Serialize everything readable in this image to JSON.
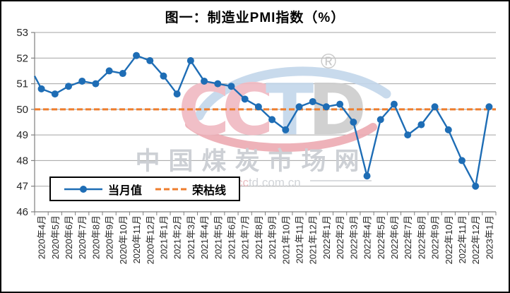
{
  "chart_data": {
    "type": "line",
    "title": "图一：制造业PMI指数（%）",
    "categories": [
      "2020年4月",
      "2020年5月",
      "2020年6月",
      "2020年7月",
      "2020年8月",
      "2020年9月",
      "2020年10月",
      "2020年11月",
      "2020年12月",
      "2021年1月",
      "2021年2月",
      "2021年3月",
      "2021年4月",
      "2021年5月",
      "2021年6月",
      "2021年7月",
      "2021年8月",
      "2021年9月",
      "2021年10月",
      "2021年11月",
      "2021年12月",
      "2022年1月",
      "2022年2月",
      "2022年3月",
      "2022年4月",
      "2022年5月",
      "2022年6月",
      "2022年7月",
      "2022年8月",
      "2022年9月",
      "2022年10月",
      "2022年11月",
      "2022年12月",
      "2023年1月"
    ],
    "series": [
      {
        "name": "当月值",
        "type": "line-with-markers",
        "values": [
          50.8,
          50.6,
          50.9,
          51.1,
          51.0,
          51.5,
          51.4,
          52.1,
          51.9,
          51.3,
          50.6,
          51.9,
          51.1,
          51.0,
          50.9,
          50.4,
          50.1,
          49.6,
          49.2,
          50.1,
          50.3,
          50.1,
          50.2,
          49.5,
          47.4,
          49.6,
          50.2,
          49.0,
          49.4,
          50.1,
          49.2,
          48.0,
          47.0,
          50.1
        ]
      },
      {
        "name": "荣枯线",
        "type": "constant-dashed-line",
        "value": 50
      }
    ],
    "lead_in_value_at_left_axis": 51.3,
    "ylim": [
      46,
      53
    ],
    "y_ticks": [
      53,
      52,
      51,
      50,
      49,
      48,
      47,
      46
    ],
    "grid": true,
    "legend_position": "inside-bottom-left"
  },
  "watermark": {
    "logo_letters": [
      "C",
      "C",
      "T",
      "D"
    ],
    "registered_mark": "®",
    "site_name": "中国煤炭市场网",
    "url_prefix": "www.",
    "url_highlight": "cc",
    "url_suffix": "td.com.cn"
  },
  "colors": {
    "series_blue": "#1e6db5",
    "dashed_orange": "#ee7d2d",
    "gridline": "#a3a3a3",
    "axis": "#808080",
    "tick_label": "#262626",
    "logo_pink": "#f0b9c1",
    "logo_blue": "#c3d6eb",
    "logo_gray": "#cdcdcd",
    "watermark_text_gray": "#c8ccd1"
  }
}
